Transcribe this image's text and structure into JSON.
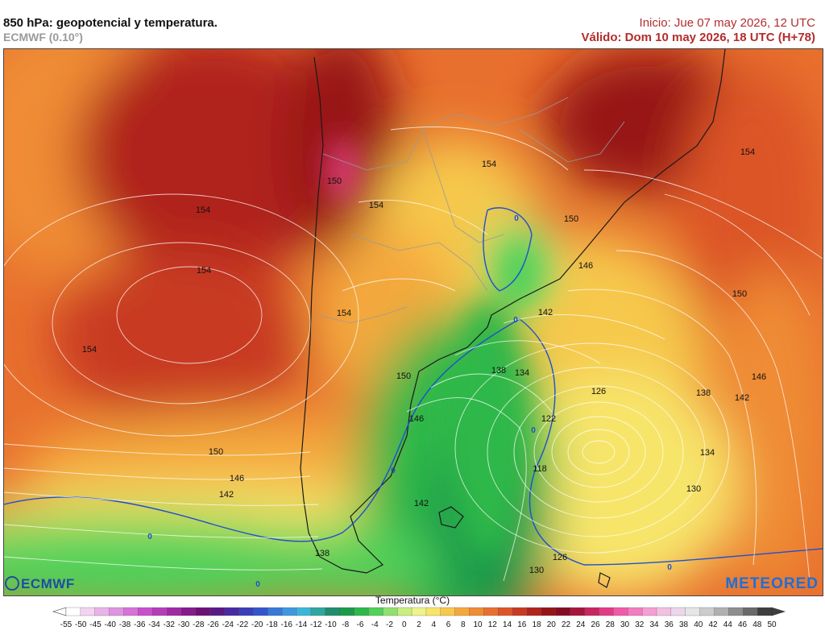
{
  "header": {
    "title": "850 hPa: geopotencial y temperatura.",
    "model": "ECMWF (0.10°)",
    "inicio": "Inicio: Jue 07 may 2026, 12 UTC",
    "valido": "Válido: Dom 10 may 2026, 18 UTC (H+78)"
  },
  "branding": {
    "left_logo": "ECMWF",
    "right_logo": "METEORED"
  },
  "legend": {
    "title": "Temperatura (°C)",
    "ticks": [
      "-55",
      "-50",
      "-45",
      "-40",
      "-38",
      "-36",
      "-34",
      "-32",
      "-30",
      "-28",
      "-26",
      "-24",
      "-22",
      "-20",
      "-18",
      "-16",
      "-14",
      "-12",
      "-10",
      "-8",
      "-6",
      "-4",
      "-2",
      "0",
      "2",
      "4",
      "6",
      "8",
      "10",
      "12",
      "14",
      "16",
      "18",
      "20",
      "22",
      "24",
      "26",
      "28",
      "30",
      "32",
      "34",
      "36",
      "38",
      "40",
      "42",
      "44",
      "46",
      "48",
      "50"
    ],
    "colors": [
      "#ffffff",
      "#f2d4f2",
      "#e9b3ea",
      "#df93e1",
      "#d672d8",
      "#c850cc",
      "#b63db8",
      "#a02aa4",
      "#871a8c",
      "#6e1074",
      "#5a1a86",
      "#4a2aa0",
      "#3b40b8",
      "#3456cc",
      "#3a78d6",
      "#3f98df",
      "#3cb6d8",
      "#2fa6a0",
      "#1f8d6e",
      "#1c9a4c",
      "#2db84a",
      "#4fd15a",
      "#8fe070",
      "#c8ef80",
      "#eef48a",
      "#f7e56a",
      "#f6c84c",
      "#f4a83c",
      "#ef8c34",
      "#e8702e",
      "#dc5528",
      "#c83a22",
      "#b0241c",
      "#971418",
      "#850c22",
      "#a6163c",
      "#c82660",
      "#e23b86",
      "#f05aa8",
      "#f47cc0",
      "#f59fd2",
      "#f4c0e0",
      "#eed6ea",
      "#e6e6e6",
      "#cccccc",
      "#b0b0b0",
      "#8e8e8e",
      "#6a6a6a",
      "#3e3e3e"
    ]
  },
  "contours": {
    "labels": [
      "154",
      "150",
      "154",
      "154",
      "154",
      "154",
      "154",
      "154",
      "150",
      "146",
      "142",
      "138",
      "134",
      "126",
      "122",
      "118",
      "138",
      "142",
      "146",
      "150",
      "134",
      "130",
      "150",
      "146",
      "142",
      "142",
      "138",
      "130",
      "126",
      "150",
      "146"
    ],
    "zero_isotherm_label": "0"
  }
}
